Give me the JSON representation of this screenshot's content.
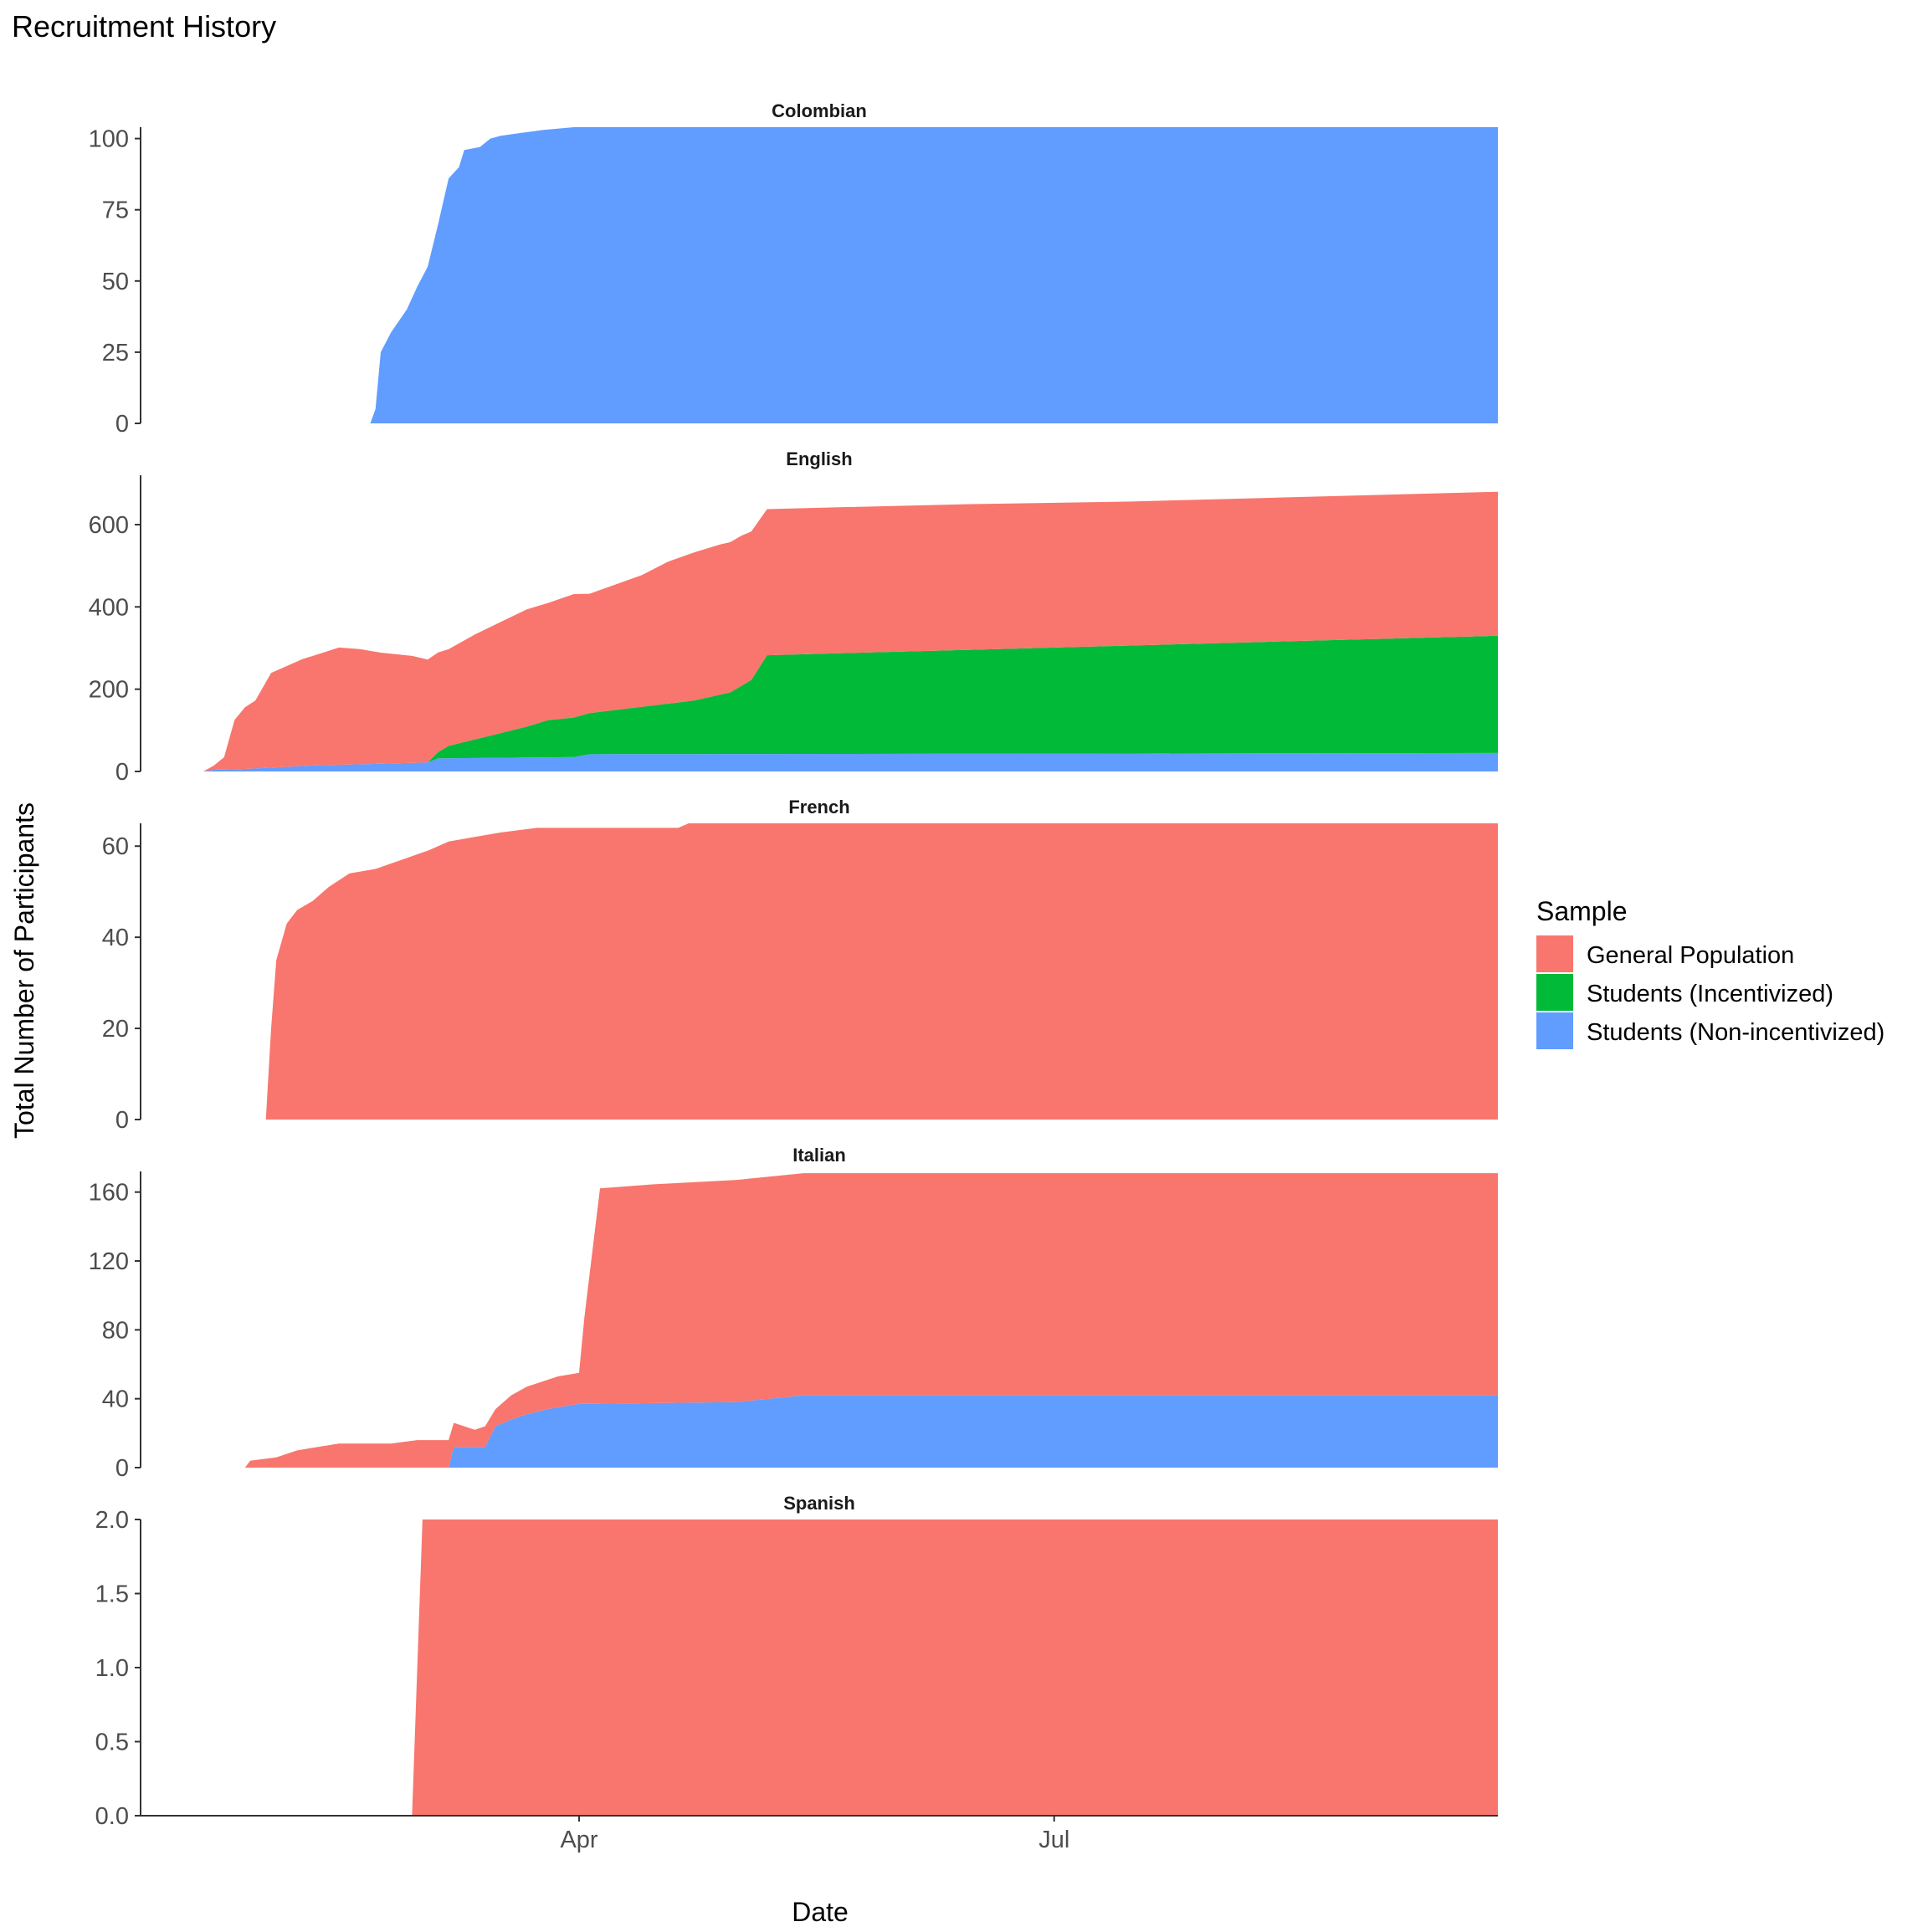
{
  "chart_data": {
    "type": "area",
    "title": "Recruitment History",
    "xlabel": "Date",
    "ylabel": "Total Number of Participants",
    "x_ticks": [
      {
        "date": "2021-04-01",
        "label": "Apr"
      },
      {
        "date": "2021-07-01",
        "label": "Jul"
      }
    ],
    "xlim": [
      "2021-01-07",
      "2021-09-24"
    ],
    "stacked": true,
    "grid": false,
    "legend": {
      "title": "Sample",
      "position": "right",
      "items": [
        {
          "key": "gp",
          "label": "General Population",
          "color": "#F8766D"
        },
        {
          "key": "si",
          "label": "Students (Incentivized)",
          "color": "#00BA38"
        },
        {
          "key": "sn",
          "label": "Students (Non-incentivized)",
          "color": "#619CFF"
        }
      ]
    },
    "panels": [
      {
        "title": "Colombian",
        "ylim": [
          0,
          104
        ],
        "y_ticks": [
          {
            "value": 0,
            "label": "0"
          },
          {
            "value": 25,
            "label": "25"
          },
          {
            "value": 50,
            "label": "50"
          },
          {
            "value": 75,
            "label": "75"
          },
          {
            "value": 100,
            "label": "100"
          }
        ],
        "series": [
          {
            "key": "sn",
            "points": [
              [
                "2021-02-20",
                0
              ],
              [
                "2021-02-21",
                5
              ],
              [
                "2021-02-22",
                25
              ],
              [
                "2021-02-24",
                32
              ],
              [
                "2021-02-27",
                40
              ],
              [
                "2021-03-01",
                48
              ],
              [
                "2021-03-03",
                55
              ],
              [
                "2021-03-05",
                70
              ],
              [
                "2021-03-07",
                86
              ],
              [
                "2021-03-09",
                90
              ],
              [
                "2021-03-10",
                96
              ],
              [
                "2021-03-13",
                97
              ],
              [
                "2021-03-15",
                100
              ],
              [
                "2021-03-17",
                101
              ],
              [
                "2021-03-21",
                102
              ],
              [
                "2021-03-25",
                103
              ],
              [
                "2021-03-31",
                104
              ],
              [
                "2021-09-24",
                104
              ]
            ]
          }
        ]
      },
      {
        "title": "English",
        "ylim": [
          0,
          720
        ],
        "y_ticks": [
          {
            "value": 0,
            "label": "0"
          },
          {
            "value": 200,
            "label": "200"
          },
          {
            "value": 400,
            "label": "400"
          },
          {
            "value": 600,
            "label": "600"
          }
        ],
        "series": [
          {
            "key": "sn",
            "points": [
              [
                "2021-01-19",
                0
              ],
              [
                "2021-01-21",
                4
              ],
              [
                "2021-01-27",
                6
              ],
              [
                "2021-02-02",
                10
              ],
              [
                "2021-02-10",
                15
              ],
              [
                "2021-02-20",
                18
              ],
              [
                "2021-03-03",
                22
              ],
              [
                "2021-03-05",
                32
              ],
              [
                "2021-03-31",
                35
              ],
              [
                "2021-04-03",
                42
              ],
              [
                "2021-09-24",
                45
              ]
            ]
          },
          {
            "key": "si",
            "points": [
              [
                "2021-01-19",
                0
              ],
              [
                "2021-03-03",
                0
              ],
              [
                "2021-03-07",
                30
              ],
              [
                "2021-03-12",
                45
              ],
              [
                "2021-03-17",
                60
              ],
              [
                "2021-03-22",
                75
              ],
              [
                "2021-03-26",
                90
              ],
              [
                "2021-04-03",
                100
              ],
              [
                "2021-04-13",
                115
              ],
              [
                "2021-04-23",
                130
              ],
              [
                "2021-04-30",
                150
              ],
              [
                "2021-05-04",
                180
              ],
              [
                "2021-05-07",
                240
              ],
              [
                "2021-09-24",
                285
              ]
            ]
          },
          {
            "key": "gp",
            "points": [
              [
                "2021-01-19",
                0
              ],
              [
                "2021-01-21",
                10
              ],
              [
                "2021-01-23",
                30
              ],
              [
                "2021-01-25",
                120
              ],
              [
                "2021-01-27",
                150
              ],
              [
                "2021-01-29",
                165
              ],
              [
                "2021-02-01",
                230
              ],
              [
                "2021-02-04",
                245
              ],
              [
                "2021-02-07",
                260
              ],
              [
                "2021-02-10",
                270
              ],
              [
                "2021-02-14",
                285
              ],
              [
                "2021-02-18",
                280
              ],
              [
                "2021-02-22",
                270
              ],
              [
                "2021-02-28",
                260
              ],
              [
                "2021-03-03",
                250
              ],
              [
                "2021-03-07",
                235
              ],
              [
                "2021-03-12",
                255
              ],
              [
                "2021-03-17",
                270
              ],
              [
                "2021-03-22",
                285
              ],
              [
                "2021-03-26",
                285
              ],
              [
                "2021-03-31",
                300
              ],
              [
                "2021-04-03",
                290
              ],
              [
                "2021-04-08",
                305
              ],
              [
                "2021-04-13",
                320
              ],
              [
                "2021-04-18",
                345
              ],
              [
                "2021-04-23",
                360
              ],
              [
                "2021-04-28",
                365
              ],
              [
                "2021-05-02",
                365
              ],
              [
                "2021-05-07",
                355
              ],
              [
                "2021-05-20",
                355
              ],
              [
                "2021-06-15",
                354
              ],
              [
                "2021-07-15",
                350
              ],
              [
                "2021-08-10",
                350
              ],
              [
                "2021-09-24",
                350
              ]
            ]
          }
        ]
      },
      {
        "title": "French",
        "ylim": [
          0,
          65
        ],
        "y_ticks": [
          {
            "value": 0,
            "label": "0"
          },
          {
            "value": 20,
            "label": "20"
          },
          {
            "value": 40,
            "label": "40"
          },
          {
            "value": 60,
            "label": "60"
          }
        ],
        "series": [
          {
            "key": "gp",
            "points": [
              [
                "2021-01-31",
                0
              ],
              [
                "2021-02-01",
                20
              ],
              [
                "2021-02-02",
                35
              ],
              [
                "2021-02-04",
                43
              ],
              [
                "2021-02-06",
                46
              ],
              [
                "2021-02-09",
                48
              ],
              [
                "2021-02-12",
                51
              ],
              [
                "2021-02-16",
                54
              ],
              [
                "2021-02-21",
                55
              ],
              [
                "2021-02-26",
                57
              ],
              [
                "2021-03-03",
                59
              ],
              [
                "2021-03-07",
                61
              ],
              [
                "2021-03-12",
                62
              ],
              [
                "2021-03-17",
                63
              ],
              [
                "2021-03-24",
                64
              ],
              [
                "2021-04-20",
                64
              ],
              [
                "2021-04-22",
                65
              ],
              [
                "2021-09-24",
                65
              ]
            ]
          }
        ]
      },
      {
        "title": "Italian",
        "ylim": [
          0,
          172
        ],
        "y_ticks": [
          {
            "value": 0,
            "label": "0"
          },
          {
            "value": 40,
            "label": "40"
          },
          {
            "value": 80,
            "label": "80"
          },
          {
            "value": 120,
            "label": "120"
          },
          {
            "value": 160,
            "label": "160"
          }
        ],
        "series": [
          {
            "key": "sn",
            "points": [
              [
                "2021-01-27",
                0
              ],
              [
                "2021-03-07",
                0
              ],
              [
                "2021-03-08",
                12
              ],
              [
                "2021-03-14",
                12
              ],
              [
                "2021-03-16",
                24
              ],
              [
                "2021-03-19",
                28
              ],
              [
                "2021-03-22",
                31
              ],
              [
                "2021-03-26",
                34
              ],
              [
                "2021-04-01",
                37
              ],
              [
                "2021-05-01",
                38
              ],
              [
                "2021-05-14",
                42
              ],
              [
                "2021-09-24",
                42
              ]
            ]
          },
          {
            "key": "gp",
            "points": [
              [
                "2021-01-27",
                0
              ],
              [
                "2021-01-28",
                4
              ],
              [
                "2021-02-02",
                6
              ],
              [
                "2021-02-06",
                10
              ],
              [
                "2021-02-10",
                12
              ],
              [
                "2021-02-14",
                14
              ],
              [
                "2021-02-18",
                14
              ],
              [
                "2021-02-24",
                14
              ],
              [
                "2021-03-01",
                16
              ],
              [
                "2021-03-07",
                16
              ],
              [
                "2021-03-08",
                14
              ],
              [
                "2021-03-12",
                10
              ],
              [
                "2021-03-14",
                12
              ],
              [
                "2021-03-16",
                10
              ],
              [
                "2021-03-19",
                14
              ],
              [
                "2021-03-22",
                16
              ],
              [
                "2021-03-26",
                17
              ],
              [
                "2021-03-28",
                18
              ],
              [
                "2021-03-30",
                18
              ],
              [
                "2021-04-01",
                18
              ],
              [
                "2021-04-02",
                50
              ],
              [
                "2021-04-03",
                75
              ],
              [
                "2021-04-05",
                125
              ],
              [
                "2021-04-15",
                127
              ],
              [
                "2021-05-01",
                129
              ],
              [
                "2021-05-14",
                129
              ],
              [
                "2021-09-24",
                129
              ]
            ]
          }
        ]
      },
      {
        "title": "Spanish",
        "ylim": [
          0,
          2.0
        ],
        "y_ticks": [
          {
            "value": 0,
            "label": "0.0"
          },
          {
            "value": 0.5,
            "label": "0.5"
          },
          {
            "value": 1.0,
            "label": "1.0"
          },
          {
            "value": 1.5,
            "label": "1.5"
          },
          {
            "value": 2.0,
            "label": "2.0"
          }
        ],
        "series": [
          {
            "key": "gp",
            "points": [
              [
                "2021-02-28",
                0
              ],
              [
                "2021-03-02",
                2
              ],
              [
                "2021-09-24",
                2
              ]
            ]
          }
        ]
      }
    ]
  }
}
